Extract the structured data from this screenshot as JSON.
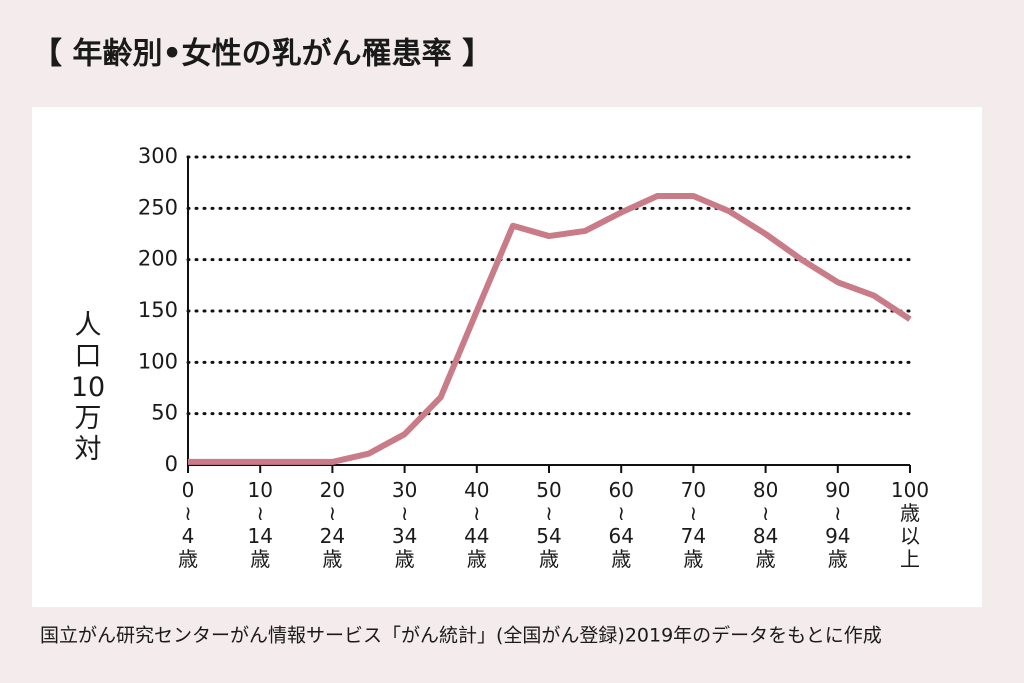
{
  "chart_data": {
    "type": "line",
    "title": "【 年齢別•女性の乳がん罹患率 】",
    "ylabel": [
      "人",
      "口",
      "10",
      "万",
      "対"
    ],
    "source": "国立がん研究センターがん情報サービス「がん統計」(全国がん登録)2019年のデータをもとに作成",
    "x": [
      0,
      5,
      10,
      15,
      20,
      25,
      30,
      35,
      40,
      45,
      50,
      55,
      60,
      65,
      70,
      75,
      80,
      85,
      90,
      95,
      100
    ],
    "series": [
      {
        "color": "#c97b88",
        "values": [
          3,
          3,
          3,
          3,
          3,
          11,
          30,
          66,
          150,
          233,
          223,
          228,
          246,
          262,
          262,
          247,
          225,
          200,
          178,
          165,
          142
        ]
      }
    ],
    "xlim": [
      0,
      100
    ],
    "ylim": [
      0,
      300
    ],
    "yticks": [
      0,
      50,
      100,
      150,
      200,
      250,
      300
    ],
    "xticks": [
      {
        "value": 0,
        "label": [
          "0",
          "≀",
          "4",
          "歳"
        ]
      },
      {
        "value": 10,
        "label": [
          "10",
          "≀",
          "14",
          "歳"
        ]
      },
      {
        "value": 20,
        "label": [
          "20",
          "≀",
          "24",
          "歳"
        ]
      },
      {
        "value": 30,
        "label": [
          "30",
          "≀",
          "34",
          "歳"
        ]
      },
      {
        "value": 40,
        "label": [
          "40",
          "≀",
          "44",
          "歳"
        ]
      },
      {
        "value": 50,
        "label": [
          "50",
          "≀",
          "54",
          "歳"
        ]
      },
      {
        "value": 60,
        "label": [
          "60",
          "≀",
          "64",
          "歳"
        ]
      },
      {
        "value": 70,
        "label": [
          "70",
          "≀",
          "74",
          "歳"
        ]
      },
      {
        "value": 80,
        "label": [
          "80",
          "≀",
          "84",
          "歳"
        ]
      },
      {
        "value": 90,
        "label": [
          "90",
          "≀",
          "94",
          "歳"
        ]
      },
      {
        "value": 100,
        "label": [
          "100",
          "歳",
          "以",
          "上"
        ]
      }
    ],
    "grid": true
  }
}
